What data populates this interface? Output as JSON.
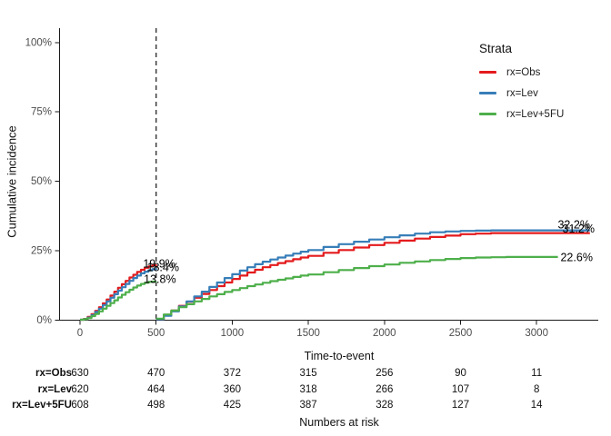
{
  "figure": {
    "ylabel": "Cumulative incidence",
    "xlabel": "Time-to-event"
  },
  "legend": {
    "title": "Strata",
    "items": [
      {
        "label": "rx=Obs",
        "color": "#E41A1C"
      },
      {
        "label": "rx=Lev",
        "color": "#377EB8"
      },
      {
        "label": "rx=Lev+5FU",
        "color": "#4DAF4A"
      }
    ]
  },
  "chart_data": {
    "type": "line",
    "subtype": "cumulative-incidence-step-curves-with-landmark",
    "title": "",
    "xlabel": "Time-to-event",
    "ylabel": "Cumulative incidence",
    "x_ticks": [
      0,
      500,
      1000,
      1500,
      2000,
      2500,
      3000
    ],
    "y_ticks": [
      {
        "value": 0,
        "label": "0%"
      },
      {
        "value": 25,
        "label": "25%"
      },
      {
        "value": 50,
        "label": "50%"
      },
      {
        "value": 75,
        "label": "75%"
      },
      {
        "value": 100,
        "label": "100%"
      }
    ],
    "xlim": [
      0,
      3400
    ],
    "ylim": [
      0,
      105
    ],
    "grid": false,
    "legend_position": "right",
    "landmark_line_x": 500,
    "series": [
      {
        "name": "rx=Obs",
        "color": "#E41A1C",
        "value_at_landmark": "19.9%",
        "value_at_end": "31.2%",
        "segments": [
          [
            [
              0,
              0
            ],
            [
              25,
              0.3
            ],
            [
              50,
              1.0
            ],
            [
              75,
              2.0
            ],
            [
              100,
              3.2
            ],
            [
              125,
              4.5
            ],
            [
              150,
              5.9
            ],
            [
              175,
              7.3
            ],
            [
              200,
              8.7
            ],
            [
              225,
              10.1
            ],
            [
              250,
              11.5
            ],
            [
              275,
              12.8
            ],
            [
              300,
              14.0
            ],
            [
              325,
              15.2
            ],
            [
              350,
              16.2
            ],
            [
              375,
              17.2
            ],
            [
              400,
              18.0
            ],
            [
              425,
              18.7
            ],
            [
              450,
              19.2
            ],
            [
              475,
              19.6
            ],
            [
              500,
              19.9
            ]
          ],
          [
            [
              500,
              0.3
            ],
            [
              550,
              1.6
            ],
            [
              600,
              3.3
            ],
            [
              650,
              5.0
            ],
            [
              700,
              6.5
            ],
            [
              750,
              7.9
            ],
            [
              800,
              9.3
            ],
            [
              850,
              10.7
            ],
            [
              900,
              12.1
            ],
            [
              950,
              13.4
            ],
            [
              1000,
              14.7
            ],
            [
              1050,
              15.9
            ],
            [
              1100,
              17.0
            ],
            [
              1150,
              18.0
            ],
            [
              1200,
              18.9
            ],
            [
              1250,
              19.7
            ],
            [
              1300,
              20.4
            ],
            [
              1350,
              21.1
            ],
            [
              1400,
              21.8
            ],
            [
              1450,
              22.4
            ],
            [
              1500,
              23.0
            ],
            [
              1600,
              24.1
            ],
            [
              1700,
              25.1
            ],
            [
              1800,
              26.0
            ],
            [
              1900,
              26.9
            ],
            [
              2000,
              27.7
            ],
            [
              2100,
              28.5
            ],
            [
              2200,
              29.2
            ],
            [
              2300,
              29.8
            ],
            [
              2400,
              30.3
            ],
            [
              2500,
              30.8
            ],
            [
              2600,
              31.0
            ],
            [
              2700,
              31.2
            ],
            [
              3350,
              31.2
            ]
          ]
        ]
      },
      {
        "name": "rx=Lev",
        "color": "#377EB8",
        "value_at_landmark": "18.4%",
        "value_at_end": "32.2%",
        "segments": [
          [
            [
              0,
              0
            ],
            [
              25,
              0.2
            ],
            [
              50,
              0.8
            ],
            [
              75,
              1.7
            ],
            [
              100,
              2.8
            ],
            [
              125,
              4.0
            ],
            [
              150,
              5.3
            ],
            [
              175,
              6.6
            ],
            [
              200,
              7.9
            ],
            [
              225,
              9.2
            ],
            [
              250,
              10.5
            ],
            [
              275,
              11.7
            ],
            [
              300,
              12.9
            ],
            [
              325,
              14.0
            ],
            [
              350,
              15.0
            ],
            [
              375,
              15.9
            ],
            [
              400,
              16.7
            ],
            [
              425,
              17.3
            ],
            [
              450,
              17.8
            ],
            [
              475,
              18.2
            ],
            [
              500,
              18.4
            ]
          ],
          [
            [
              500,
              0.2
            ],
            [
              550,
              1.4
            ],
            [
              600,
              3.0
            ],
            [
              650,
              4.8
            ],
            [
              700,
              6.6
            ],
            [
              750,
              8.4
            ],
            [
              800,
              10.1
            ],
            [
              850,
              11.8
            ],
            [
              900,
              13.4
            ],
            [
              950,
              15.0
            ],
            [
              1000,
              16.4
            ],
            [
              1050,
              17.7
            ],
            [
              1100,
              18.9
            ],
            [
              1150,
              20.0
            ],
            [
              1200,
              20.9
            ],
            [
              1250,
              21.7
            ],
            [
              1300,
              22.4
            ],
            [
              1350,
              23.1
            ],
            [
              1400,
              23.8
            ],
            [
              1450,
              24.5
            ],
            [
              1500,
              25.1
            ],
            [
              1600,
              26.2
            ],
            [
              1700,
              27.2
            ],
            [
              1800,
              28.1
            ],
            [
              1900,
              28.9
            ],
            [
              2000,
              29.7
            ],
            [
              2100,
              30.4
            ],
            [
              2200,
              31.0
            ],
            [
              2300,
              31.5
            ],
            [
              2400,
              31.8
            ],
            [
              2500,
              32.0
            ],
            [
              2600,
              32.1
            ],
            [
              2700,
              32.2
            ],
            [
              3350,
              32.2
            ]
          ]
        ]
      },
      {
        "name": "rx=Lev+5FU",
        "color": "#4DAF4A",
        "value_at_landmark": "13.8%",
        "value_at_end": "22.6%",
        "segments": [
          [
            [
              0,
              0
            ],
            [
              25,
              0.2
            ],
            [
              50,
              0.6
            ],
            [
              75,
              1.3
            ],
            [
              100,
              2.1
            ],
            [
              125,
              3.0
            ],
            [
              150,
              4.0
            ],
            [
              175,
              5.0
            ],
            [
              200,
              6.0
            ],
            [
              225,
              7.0
            ],
            [
              250,
              8.0
            ],
            [
              275,
              9.0
            ],
            [
              300,
              9.9
            ],
            [
              325,
              10.8
            ],
            [
              350,
              11.6
            ],
            [
              375,
              12.3
            ],
            [
              400,
              12.9
            ],
            [
              425,
              13.3
            ],
            [
              450,
              13.6
            ],
            [
              475,
              13.75
            ],
            [
              500,
              13.8
            ]
          ],
          [
            [
              500,
              0.4
            ],
            [
              550,
              1.9
            ],
            [
              600,
              3.3
            ],
            [
              650,
              4.5
            ],
            [
              700,
              5.6
            ],
            [
              750,
              6.6
            ],
            [
              800,
              7.5
            ],
            [
              850,
              8.4
            ],
            [
              900,
              9.2
            ],
            [
              950,
              10.0
            ],
            [
              1000,
              10.7
            ],
            [
              1050,
              11.4
            ],
            [
              1100,
              12.1
            ],
            [
              1150,
              12.7
            ],
            [
              1200,
              13.3
            ],
            [
              1250,
              13.9
            ],
            [
              1300,
              14.4
            ],
            [
              1350,
              14.9
            ],
            [
              1400,
              15.4
            ],
            [
              1450,
              15.9
            ],
            [
              1500,
              16.3
            ],
            [
              1600,
              17.1
            ],
            [
              1700,
              17.9
            ],
            [
              1800,
              18.6
            ],
            [
              1900,
              19.3
            ],
            [
              2000,
              19.9
            ],
            [
              2100,
              20.5
            ],
            [
              2200,
              21.0
            ],
            [
              2300,
              21.5
            ],
            [
              2400,
              21.9
            ],
            [
              2500,
              22.2
            ],
            [
              2600,
              22.4
            ],
            [
              2700,
              22.5
            ],
            [
              2800,
              22.6
            ],
            [
              3140,
              22.6
            ]
          ]
        ]
      }
    ],
    "annotations": [
      {
        "text": "18.4%",
        "t": 545,
        "pct": 19.0
      },
      {
        "text": "19.9%",
        "t": 520,
        "pct": 20.3
      },
      {
        "text": "13.8%",
        "t": 525,
        "pct": 14.8
      },
      {
        "text": "31.2%",
        "t": 3275,
        "pct": 32.8
      },
      {
        "text": "32.2%",
        "t": 3245,
        "pct": 34.4
      },
      {
        "text": "22.6%",
        "t": 3263,
        "pct": 22.6
      }
    ]
  },
  "risk_table": {
    "caption": "Numbers at risk",
    "times": [
      0,
      500,
      1000,
      1500,
      2000,
      2500,
      3000
    ],
    "rows": [
      {
        "label": "rx=Obs",
        "values": [
          "630",
          "470",
          "372",
          "315",
          "256",
          "90",
          "11"
        ]
      },
      {
        "label": "rx=Lev",
        "values": [
          "620",
          "464",
          "360",
          "318",
          "266",
          "107",
          "8"
        ]
      },
      {
        "label": "rx=Lev+5FU",
        "values": [
          "608",
          "498",
          "425",
          "387",
          "328",
          "127",
          "14"
        ]
      }
    ]
  }
}
